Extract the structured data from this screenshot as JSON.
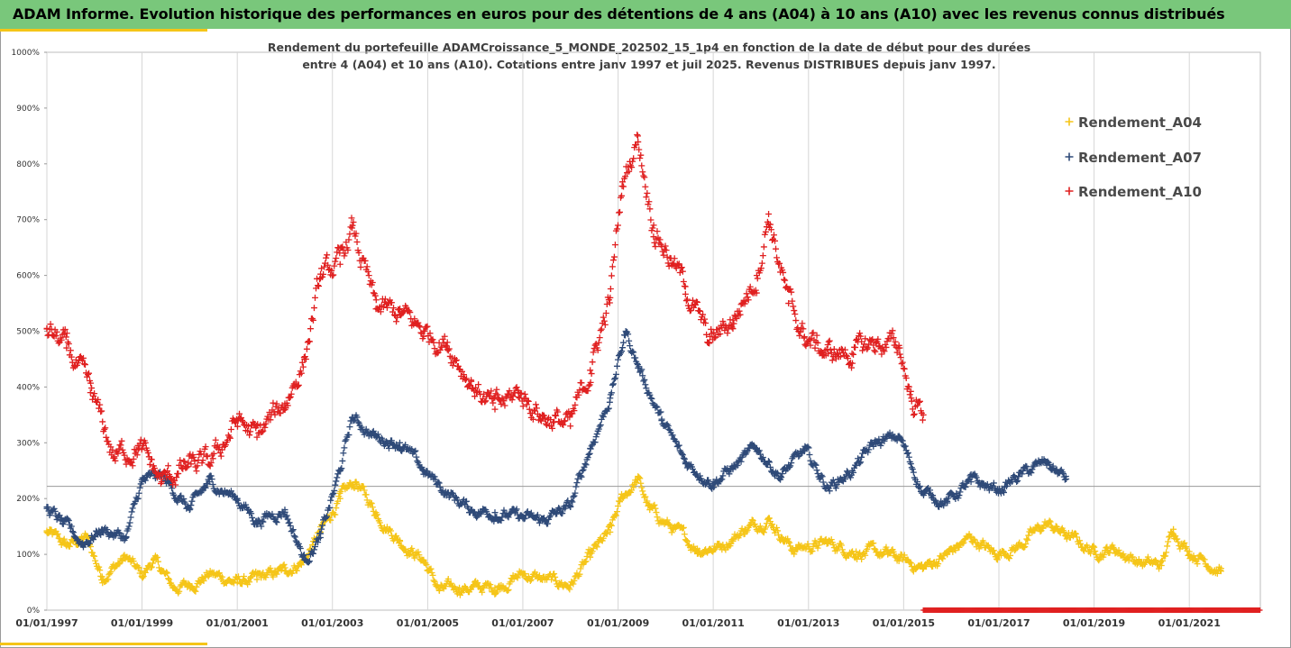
{
  "header": {
    "title": "ADAM Informe. Evolution historique des performances en euros pour des détentions de 4 ans (A04) à 10 ans (A10) avec les revenus connus distribués"
  },
  "theme": {
    "banner_color": "#79c77b",
    "accent_color": "#f5c518",
    "reference_line_color": "#9a9a9a"
  },
  "chart_data": {
    "type": "scatter",
    "title": "",
    "subtitle_lines": [
      "Rendement du portefeuille ADAMCroissance_5_MONDE_202502_15_1p4  en fonction de la date de début pour des durées",
      "entre 4 (A04) et 10 ans (A10). Cotations entre janv 1997 et juil 2025. Revenus DISTRIBUES depuis janv 1997."
    ],
    "xlabel": "",
    "ylabel": "",
    "x_axis": {
      "type": "date",
      "range": [
        "1997-01-01",
        "2022-06-30"
      ],
      "tick_labels": [
        "01/01/1997",
        "01/01/1999",
        "01/01/2001",
        "01/01/2003",
        "01/01/2005",
        "01/01/2007",
        "01/01/2009",
        "01/01/2011",
        "01/01/2013",
        "01/01/2015",
        "01/01/2017",
        "01/01/2019",
        "01/01/2021"
      ]
    },
    "y_axis": {
      "range": [
        0,
        10
      ],
      "format": "percent",
      "tick_labels": [
        "0%",
        "100%",
        "200%",
        "300%",
        "400%",
        "500%",
        "600%",
        "700%",
        "800%",
        "900%",
        "1000%"
      ]
    },
    "reference_line_y": 2.22,
    "grid": "vertical",
    "legend": {
      "position": "top-right",
      "marker": "+"
    },
    "series": [
      {
        "name": "Rendement_A04",
        "color": "#f5c518",
        "range": [
          "1997-01-01",
          "2021-09-01"
        ],
        "values": [
          [
            "1997-01-01",
            1.4
          ],
          [
            "1997-06-01",
            1.15
          ],
          [
            "1997-11-01",
            1.3
          ],
          [
            "1998-03-01",
            0.6
          ],
          [
            "1998-09-01",
            0.95
          ],
          [
            "1999-01-01",
            0.6
          ],
          [
            "1999-04-01",
            0.9
          ],
          [
            "1999-09-01",
            0.4
          ],
          [
            "2000-01-01",
            0.45
          ],
          [
            "2000-06-01",
            0.65
          ],
          [
            "2001-01-01",
            0.5
          ],
          [
            "2001-06-01",
            0.55
          ],
          [
            "2002-01-01",
            0.7
          ],
          [
            "2002-06-01",
            0.9
          ],
          [
            "2002-10-01",
            1.4
          ],
          [
            "2003-03-01",
            2.0
          ],
          [
            "2003-07-01",
            2.3
          ],
          [
            "2003-12-01",
            1.75
          ],
          [
            "2004-06-01",
            1.25
          ],
          [
            "2004-12-01",
            0.9
          ],
          [
            "2005-04-01",
            0.35
          ],
          [
            "2005-09-01",
            0.4
          ],
          [
            "2006-06-01",
            0.4
          ],
          [
            "2007-01-01",
            0.65
          ],
          [
            "2007-06-01",
            0.55
          ],
          [
            "2008-01-01",
            0.45
          ],
          [
            "2008-06-01",
            0.95
          ],
          [
            "2008-11-01",
            1.4
          ],
          [
            "2009-02-01",
            2.0
          ],
          [
            "2009-06-01",
            2.35
          ],
          [
            "2009-09-01",
            1.8
          ],
          [
            "2010-03-01",
            1.45
          ],
          [
            "2010-09-01",
            1.1
          ],
          [
            "2011-03-01",
            1.15
          ],
          [
            "2011-09-01",
            1.45
          ],
          [
            "2012-03-01",
            1.65
          ],
          [
            "2012-09-01",
            1.1
          ],
          [
            "2013-06-01",
            1.2
          ],
          [
            "2014-01-01",
            1.05
          ],
          [
            "2014-09-01",
            1.0
          ],
          [
            "2015-06-01",
            0.75
          ],
          [
            "2015-12-01",
            1.0
          ],
          [
            "2016-06-01",
            1.3
          ],
          [
            "2016-12-01",
            1.0
          ],
          [
            "2017-06-01",
            1.15
          ],
          [
            "2018-01-01",
            1.55
          ],
          [
            "2018-06-01",
            1.35
          ],
          [
            "2019-01-01",
            1.05
          ],
          [
            "2019-06-01",
            1.1
          ],
          [
            "2020-01-01",
            0.85
          ],
          [
            "2020-06-01",
            0.8
          ],
          [
            "2020-09-01",
            1.45
          ],
          [
            "2021-01-01",
            1.05
          ],
          [
            "2021-04-01",
            0.95
          ],
          [
            "2021-09-01",
            0.7
          ]
        ]
      },
      {
        "name": "Rendement_A07",
        "color": "#2f4a78",
        "range": [
          "1997-01-01",
          "2018-06-01"
        ],
        "values": [
          [
            "1997-01-01",
            1.85
          ],
          [
            "1997-05-01",
            1.55
          ],
          [
            "1997-10-01",
            1.2
          ],
          [
            "1998-03-01",
            1.45
          ],
          [
            "1998-09-01",
            1.3
          ],
          [
            "1999-01-01",
            2.3
          ],
          [
            "1999-06-01",
            2.4
          ],
          [
            "2000-01-01",
            1.8
          ],
          [
            "2000-06-01",
            2.3
          ],
          [
            "2001-01-01",
            2.0
          ],
          [
            "2001-06-01",
            1.6
          ],
          [
            "2002-01-01",
            1.8
          ],
          [
            "2002-06-01",
            0.9
          ],
          [
            "2002-10-01",
            1.3
          ],
          [
            "2003-03-01",
            2.5
          ],
          [
            "2003-06-01",
            3.45
          ],
          [
            "2003-12-01",
            3.1
          ],
          [
            "2004-06-01",
            3.0
          ],
          [
            "2004-12-01",
            2.5
          ],
          [
            "2005-06-01",
            2.1
          ],
          [
            "2005-12-01",
            1.8
          ],
          [
            "2006-06-01",
            1.75
          ],
          [
            "2007-01-01",
            1.65
          ],
          [
            "2007-06-01",
            1.6
          ],
          [
            "2008-01-01",
            1.85
          ],
          [
            "2008-06-01",
            2.9
          ],
          [
            "2008-11-01",
            3.8
          ],
          [
            "2009-03-01",
            5.0
          ],
          [
            "2009-06-01",
            4.4
          ],
          [
            "2009-12-01",
            3.4
          ],
          [
            "2010-06-01",
            2.65
          ],
          [
            "2011-01-01",
            2.3
          ],
          [
            "2011-06-01",
            2.55
          ],
          [
            "2011-12-01",
            2.9
          ],
          [
            "2012-06-01",
            2.4
          ],
          [
            "2012-12-01",
            2.85
          ],
          [
            "2013-06-01",
            2.2
          ],
          [
            "2013-12-01",
            2.5
          ],
          [
            "2014-06-01",
            3.0
          ],
          [
            "2014-12-01",
            3.1
          ],
          [
            "2015-06-01",
            2.1
          ],
          [
            "2015-12-01",
            1.95
          ],
          [
            "2016-06-01",
            2.3
          ],
          [
            "2017-01-01",
            2.15
          ],
          [
            "2017-06-01",
            2.4
          ],
          [
            "2018-01-01",
            2.65
          ],
          [
            "2018-06-01",
            2.35
          ]
        ]
      },
      {
        "name": "Rendement_A10",
        "color": "#e02020",
        "range": [
          "1997-01-01",
          "2015-06-01"
        ],
        "values": [
          [
            "1997-01-01",
            5.05
          ],
          [
            "1997-06-01",
            4.7
          ],
          [
            "1997-12-01",
            3.9
          ],
          [
            "1998-06-01",
            2.75
          ],
          [
            "1998-12-01",
            2.95
          ],
          [
            "1999-06-01",
            2.3
          ],
          [
            "1999-12-01",
            2.55
          ],
          [
            "2000-06-01",
            2.6
          ],
          [
            "2001-01-01",
            3.4
          ],
          [
            "2001-06-01",
            3.1
          ],
          [
            "2002-01-01",
            3.7
          ],
          [
            "2002-06-01",
            4.5
          ],
          [
            "2002-10-01",
            5.95
          ],
          [
            "2003-03-01",
            6.2
          ],
          [
            "2003-06-01",
            6.85
          ],
          [
            "2003-12-01",
            5.4
          ],
          [
            "2004-06-01",
            5.3
          ],
          [
            "2004-12-01",
            5.0
          ],
          [
            "2005-06-01",
            4.8
          ],
          [
            "2005-12-01",
            4.1
          ],
          [
            "2006-06-01",
            3.6
          ],
          [
            "2006-12-01",
            3.9
          ],
          [
            "2007-06-01",
            3.5
          ],
          [
            "2008-01-01",
            3.3
          ],
          [
            "2008-06-01",
            4.3
          ],
          [
            "2008-11-01",
            5.6
          ],
          [
            "2009-02-01",
            7.6
          ],
          [
            "2009-06-01",
            8.5
          ],
          [
            "2009-10-01",
            6.9
          ],
          [
            "2010-06-01",
            5.8
          ],
          [
            "2010-12-01",
            4.8
          ],
          [
            "2011-06-01",
            5.2
          ],
          [
            "2011-12-01",
            6.0
          ],
          [
            "2012-03-01",
            7.1
          ],
          [
            "2012-08-01",
            5.5
          ],
          [
            "2012-12-01",
            4.9
          ],
          [
            "2013-06-01",
            4.6
          ],
          [
            "2013-12-01",
            4.6
          ],
          [
            "2014-06-01",
            4.8
          ],
          [
            "2014-12-01",
            4.7
          ],
          [
            "2015-03-01",
            3.8
          ],
          [
            "2015-06-01",
            3.5
          ]
        ]
      }
    ],
    "baseline_markers": {
      "color": "#e02020",
      "range": [
        "2015-06-01",
        "2022-06-30"
      ],
      "y": 0
    }
  }
}
